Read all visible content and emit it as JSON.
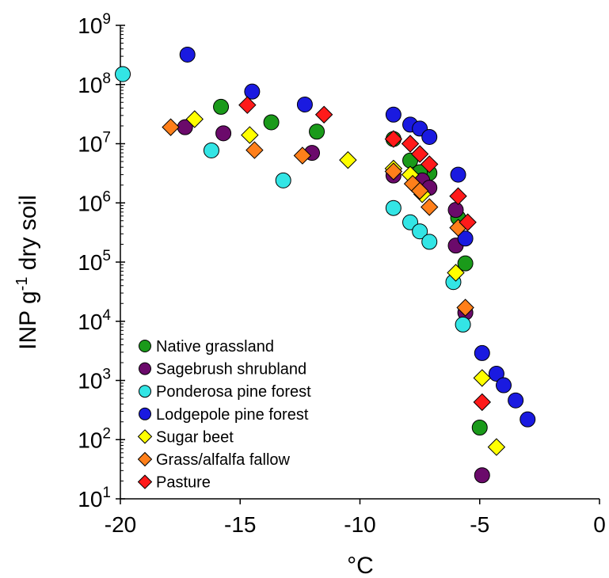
{
  "chart_data": {
    "type": "scatter",
    "title": "",
    "xlabel": "°C",
    "ylabel_main": "INP g",
    "ylabel_sup": "-1",
    "ylabel_tail": " dry soil",
    "xlim": [
      -20,
      0
    ],
    "ylim": [
      10,
      1000000000
    ],
    "y_scale": "log",
    "grid": false,
    "legend_position": "lower-left",
    "x_ticks": [
      -20,
      -15,
      -10,
      -5,
      0
    ],
    "x_tick_labels": [
      "-20",
      "-15",
      "-10",
      "-5",
      "0"
    ],
    "y_ticks": [
      {
        "value": 1000000000,
        "base": "10",
        "exp": "9"
      },
      {
        "value": 100000000,
        "base": "10",
        "exp": "8"
      },
      {
        "value": 10000000,
        "base": "10",
        "exp": "7"
      },
      {
        "value": 1000000,
        "base": "10",
        "exp": "6"
      },
      {
        "value": 100000,
        "base": "10",
        "exp": "5"
      },
      {
        "value": 10000,
        "base": "10",
        "exp": "4"
      },
      {
        "value": 1000,
        "base": "10",
        "exp": "3"
      },
      {
        "value": 100,
        "base": "10",
        "exp": "2"
      },
      {
        "value": 10,
        "base": "10",
        "exp": "1"
      }
    ],
    "series": [
      {
        "name": "Native grassland",
        "marker": "circle",
        "color": "#1a9a1a",
        "points": [
          [
            -15.8,
            42000000
          ],
          [
            -13.7,
            23000000
          ],
          [
            -11.8,
            16000000
          ],
          [
            -8.6,
            12000000
          ],
          [
            -7.9,
            5200000
          ],
          [
            -7.1,
            3200000
          ],
          [
            -7.5,
            3300000
          ],
          [
            -5.9,
            560000
          ],
          [
            -5.6,
            95000
          ],
          [
            -5.0,
            160
          ]
        ]
      },
      {
        "name": "Sagebrush shrubland",
        "marker": "circle",
        "color": "#6b0a6b",
        "points": [
          [
            -17.3,
            19000000
          ],
          [
            -15.7,
            15000000
          ],
          [
            -12.0,
            7000000
          ],
          [
            -8.6,
            2900000
          ],
          [
            -7.4,
            2400000
          ],
          [
            -7.1,
            1800000
          ],
          [
            -6.0,
            760000
          ],
          [
            -6.0,
            190000
          ],
          [
            -5.6,
            14000
          ],
          [
            -4.9,
            25
          ]
        ]
      },
      {
        "name": "Ponderosa pine forest",
        "marker": "circle",
        "color": "#33e5e5",
        "points": [
          [
            -19.9,
            150000000
          ],
          [
            -16.2,
            7700000
          ],
          [
            -13.2,
            2400000
          ],
          [
            -8.6,
            820000
          ],
          [
            -7.9,
            470000
          ],
          [
            -7.5,
            330000
          ],
          [
            -7.1,
            220000
          ],
          [
            -6.1,
            46000
          ],
          [
            -5.7,
            8800
          ]
        ]
      },
      {
        "name": "Lodgepole pine forest",
        "marker": "circle",
        "color": "#1a1ae0",
        "points": [
          [
            -17.2,
            320000000
          ],
          [
            -14.5,
            76000000
          ],
          [
            -12.3,
            46000000
          ],
          [
            -8.6,
            31000000
          ],
          [
            -7.9,
            21000000
          ],
          [
            -7.5,
            18000000
          ],
          [
            -7.1,
            13000000
          ],
          [
            -5.9,
            3000000
          ],
          [
            -5.6,
            250000
          ],
          [
            -4.9,
            2900
          ],
          [
            -4.3,
            1300
          ],
          [
            -4.0,
            830
          ],
          [
            -3.5,
            460
          ],
          [
            -3.0,
            220
          ]
        ]
      },
      {
        "name": "Sugar beet",
        "marker": "diamond",
        "color": "#ffff00",
        "points": [
          [
            -16.9,
            26000000
          ],
          [
            -14.6,
            14000000
          ],
          [
            -10.5,
            5300000
          ],
          [
            -8.6,
            3800000
          ],
          [
            -7.9,
            3000000
          ],
          [
            -7.4,
            1400000
          ],
          [
            -6.0,
            66000
          ],
          [
            -4.9,
            1100
          ],
          [
            -4.3,
            75
          ]
        ]
      },
      {
        "name": "Grass/alfalfa fallow",
        "marker": "diamond",
        "color": "#ff7f1a",
        "points": [
          [
            -17.9,
            19000000
          ],
          [
            -14.4,
            7800000
          ],
          [
            -12.4,
            6300000
          ],
          [
            -8.6,
            3400000
          ],
          [
            -7.8,
            2100000
          ],
          [
            -7.5,
            1600000
          ],
          [
            -7.1,
            850000
          ],
          [
            -5.9,
            380000
          ],
          [
            -5.6,
            17000
          ]
        ]
      },
      {
        "name": "Pasture",
        "marker": "diamond",
        "color": "#ff1a1a",
        "points": [
          [
            -14.7,
            45000000
          ],
          [
            -11.5,
            31000000
          ],
          [
            -8.6,
            12000000
          ],
          [
            -7.9,
            10000000
          ],
          [
            -7.5,
            6700000
          ],
          [
            -7.1,
            4500000
          ],
          [
            -5.9,
            1300000
          ],
          [
            -5.5,
            470000
          ],
          [
            -4.9,
            430
          ]
        ]
      }
    ]
  }
}
